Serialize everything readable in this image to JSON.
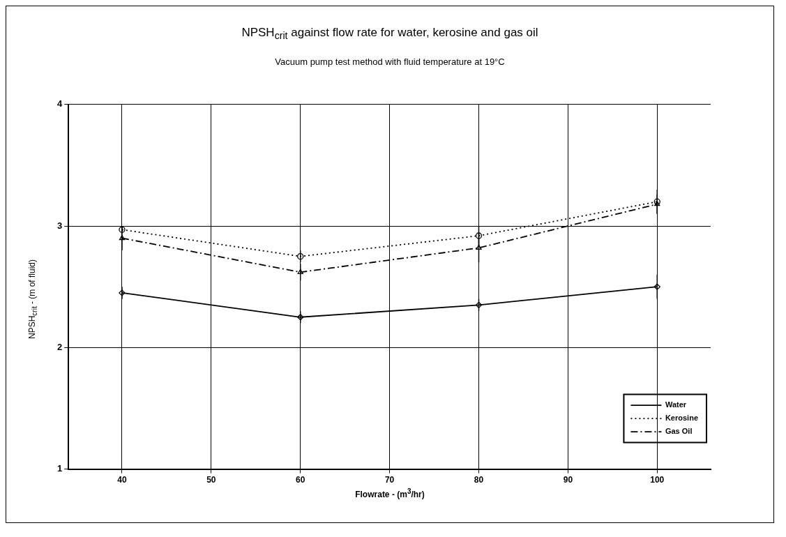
{
  "chart_data": {
    "type": "line",
    "title": "NPSH$_{crit}$ against flow rate for water, kerosine and gas oil",
    "subtitle": "Vacuum pump test method with fluid temperature at 19°C",
    "xlabel": "Flowrate - (m$^{3}$/hr)",
    "ylabel": "NPSH$_{crit}$ - (m of fluid)",
    "x": [
      40,
      60,
      80,
      100
    ],
    "xlim": [
      34,
      106
    ],
    "xticks": [
      40,
      50,
      60,
      70,
      80,
      90,
      100
    ],
    "ylim": [
      1,
      4
    ],
    "yticks": [
      1,
      2,
      3,
      4
    ],
    "grid": true,
    "legend": "bottom right",
    "series": [
      {
        "name": "Water",
        "color": "#000000",
        "values": [
          2.45,
          2.25,
          2.35,
          2.5
        ],
        "errors": [
          0.05,
          0.05,
          0.05,
          0.1
        ],
        "marker": "diamond",
        "line_style": "solid"
      },
      {
        "name": "Kerosine",
        "color": "#000000",
        "values": [
          2.97,
          2.75,
          2.92,
          3.2
        ],
        "errors": [
          0.03,
          0.05,
          0.08,
          0.1
        ],
        "marker": "circle",
        "line_style": "dotted"
      },
      {
        "name": "Gas Oil",
        "color": "#000000",
        "values": [
          2.9,
          2.62,
          2.82,
          3.18
        ],
        "errors": [
          0.1,
          0.07,
          0.12,
          0.08
        ],
        "marker": "triangle",
        "line_style": "dashed"
      }
    ]
  }
}
